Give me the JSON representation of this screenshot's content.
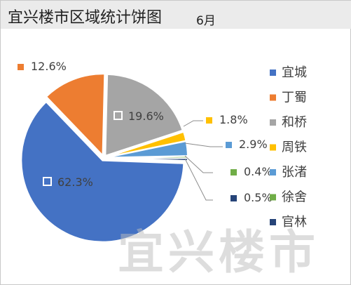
{
  "header": {
    "title": "宜兴楼市区域统计饼图",
    "subtitle": "6月"
  },
  "watermark": {
    "text": "宜兴楼市"
  },
  "chart_data": {
    "type": "pie",
    "title": "宜兴楼市区域统计饼图",
    "subtitle": "6月",
    "unit": "%",
    "slices": [
      {
        "name": "宜城",
        "value": 62.3,
        "label": "62.3%",
        "color": "#4472c4"
      },
      {
        "name": "丁蜀",
        "value": 12.6,
        "label": "12.6%",
        "color": "#ed7d31"
      },
      {
        "name": "和桥",
        "value": 19.6,
        "label": "19.6%",
        "color": "#a5a5a5"
      },
      {
        "name": "周铁",
        "value": 1.8,
        "label": "1.8%",
        "color": "#ffc000"
      },
      {
        "name": "张渚",
        "value": 2.9,
        "label": "2.9%",
        "color": "#5b9bd5"
      },
      {
        "name": "徐舍",
        "value": 0.4,
        "label": "0.4%",
        "color": "#70ad47"
      },
      {
        "name": "官林",
        "value": 0.5,
        "label": "0.5%",
        "color": "#264478"
      }
    ],
    "legend_position": "right"
  }
}
